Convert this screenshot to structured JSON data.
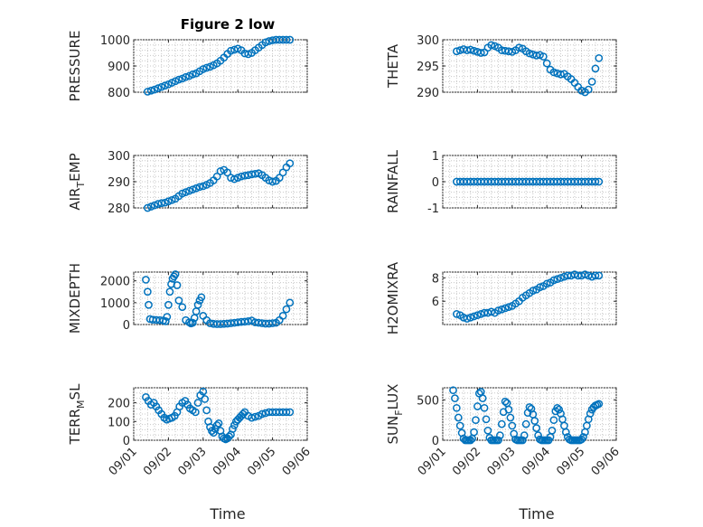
{
  "figure": {
    "title": "Figure 2 low",
    "xlabel": "Time",
    "x_tick_labels": [
      "09/01",
      "09/02",
      "09/03",
      "09/04",
      "09/05",
      "09/06"
    ],
    "marker_color": "#0072BD"
  },
  "chart_data": [
    {
      "type": "scatter",
      "name": "pressure",
      "ylabel_main": "PRESSURE",
      "ylabel_sub": "",
      "ylabel_tail": "",
      "ylim": [
        800,
        1000
      ],
      "yticks": [
        800,
        900,
        1000
      ],
      "x": [
        1.4,
        1.5,
        1.6,
        1.7,
        1.8,
        1.9,
        2.0,
        2.1,
        2.2,
        2.3,
        2.4,
        2.5,
        2.6,
        2.7,
        2.8,
        2.9,
        3.0,
        3.1,
        3.2,
        3.3,
        3.4,
        3.5,
        3.6,
        3.7,
        3.8,
        3.9,
        4.0,
        4.1,
        4.2,
        4.3,
        4.4,
        4.5,
        4.6,
        4.7,
        4.8,
        4.9,
        5.0,
        5.1,
        5.2,
        5.3,
        5.4,
        5.5
      ],
      "y": [
        802,
        806,
        810,
        815,
        820,
        825,
        830,
        836,
        842,
        848,
        852,
        858,
        862,
        868,
        872,
        880,
        888,
        893,
        897,
        903,
        910,
        920,
        932,
        946,
        958,
        962,
        966,
        960,
        948,
        945,
        950,
        960,
        970,
        980,
        990,
        995,
        998,
        1000,
        1000,
        1000,
        1000,
        1000
      ]
    },
    {
      "type": "scatter",
      "name": "theta",
      "ylabel_main": "THETA",
      "ylabel_sub": "",
      "ylabel_tail": "",
      "ylim": [
        290,
        300
      ],
      "yticks": [
        290,
        295,
        300
      ],
      "x": [
        1.4,
        1.5,
        1.6,
        1.7,
        1.8,
        1.9,
        2.0,
        2.1,
        2.2,
        2.3,
        2.4,
        2.5,
        2.6,
        2.7,
        2.8,
        2.9,
        3.0,
        3.1,
        3.2,
        3.3,
        3.4,
        3.5,
        3.6,
        3.7,
        3.8,
        3.9,
        4.0,
        4.1,
        4.2,
        4.3,
        4.4,
        4.5,
        4.6,
        4.7,
        4.8,
        4.9,
        5.0,
        5.1,
        5.2,
        5.3,
        5.4,
        5.5
      ],
      "y": [
        297.8,
        298.0,
        298.2,
        298.0,
        298.1,
        297.9,
        297.7,
        297.5,
        297.6,
        298.5,
        299.0,
        298.8,
        298.5,
        298.0,
        297.9,
        297.8,
        297.7,
        298.0,
        298.5,
        298.3,
        297.8,
        297.4,
        297.2,
        297.0,
        297.1,
        296.8,
        295.5,
        294.3,
        293.8,
        293.6,
        293.4,
        293.5,
        293.0,
        292.5,
        291.8,
        291.0,
        290.3,
        290.0,
        290.5,
        292.0,
        294.5,
        296.5
      ]
    },
    {
      "type": "scatter",
      "name": "air_temp",
      "ylabel_main": "AIR",
      "ylabel_sub": "T",
      "ylabel_tail": "EMP",
      "ylim": [
        280,
        300
      ],
      "yticks": [
        280,
        290,
        300
      ],
      "x": [
        1.4,
        1.5,
        1.6,
        1.7,
        1.8,
        1.9,
        2.0,
        2.1,
        2.2,
        2.3,
        2.4,
        2.5,
        2.6,
        2.7,
        2.8,
        2.9,
        3.0,
        3.1,
        3.2,
        3.3,
        3.4,
        3.5,
        3.6,
        3.7,
        3.8,
        3.9,
        4.0,
        4.1,
        4.2,
        4.3,
        4.4,
        4.5,
        4.6,
        4.7,
        4.8,
        4.9,
        5.0,
        5.1,
        5.2,
        5.3,
        5.4,
        5.5
      ],
      "y": [
        280.0,
        280.5,
        281.0,
        281.5,
        281.8,
        282.0,
        282.5,
        283.0,
        283.5,
        284.5,
        285.5,
        286.0,
        286.5,
        287.0,
        287.5,
        288.0,
        288.3,
        288.8,
        289.5,
        290.5,
        292.0,
        294.0,
        294.5,
        293.5,
        291.5,
        291.0,
        291.5,
        292.0,
        292.3,
        292.5,
        292.8,
        293.0,
        293.2,
        292.5,
        291.5,
        290.5,
        290.0,
        290.3,
        291.5,
        293.5,
        295.5,
        297.0
      ]
    },
    {
      "type": "scatter",
      "name": "rainfall",
      "ylabel_main": "RAINFALL",
      "ylabel_sub": "",
      "ylabel_tail": "",
      "ylim": [
        -1,
        1
      ],
      "yticks": [
        -1,
        0,
        1
      ],
      "x": [
        1.4,
        1.5,
        1.6,
        1.7,
        1.8,
        1.9,
        2.0,
        2.1,
        2.2,
        2.3,
        2.4,
        2.5,
        2.6,
        2.7,
        2.8,
        2.9,
        3.0,
        3.1,
        3.2,
        3.3,
        3.4,
        3.5,
        3.6,
        3.7,
        3.8,
        3.9,
        4.0,
        4.1,
        4.2,
        4.3,
        4.4,
        4.5,
        4.6,
        4.7,
        4.8,
        4.9,
        5.0,
        5.1,
        5.2,
        5.3,
        5.4,
        5.5
      ],
      "y": [
        0,
        0,
        0,
        0,
        0,
        0,
        0,
        0,
        0,
        0,
        0,
        0,
        0,
        0,
        0,
        0,
        0,
        0,
        0,
        0,
        0,
        0,
        0,
        0,
        0,
        0,
        0,
        0,
        0,
        0,
        0,
        0,
        0,
        0,
        0,
        0,
        0,
        0,
        0,
        0,
        0,
        0
      ]
    },
    {
      "type": "scatter",
      "name": "mixdepth",
      "ylabel_main": "MIXDEPTH",
      "ylabel_sub": "",
      "ylabel_tail": "",
      "ylim": [
        0,
        2400
      ],
      "yticks": [
        0,
        1000,
        2000
      ],
      "x": [
        1.35,
        1.4,
        1.43,
        1.47,
        1.55,
        1.65,
        1.75,
        1.85,
        1.92,
        1.96,
        2.0,
        2.04,
        2.08,
        2.12,
        2.16,
        2.2,
        2.25,
        2.3,
        2.4,
        2.5,
        2.6,
        2.65,
        2.7,
        2.75,
        2.8,
        2.85,
        2.9,
        2.95,
        3.0,
        3.1,
        3.2,
        3.3,
        3.4,
        3.5,
        3.6,
        3.7,
        3.8,
        3.9,
        4.0,
        4.1,
        4.2,
        4.3,
        4.4,
        4.5,
        4.6,
        4.7,
        4.8,
        4.9,
        5.0,
        5.1,
        5.2,
        5.3,
        5.4,
        5.5
      ],
      "y": [
        2050,
        1500,
        900,
        250,
        220,
        210,
        200,
        180,
        150,
        350,
        900,
        1500,
        1850,
        2100,
        2200,
        2300,
        1800,
        1100,
        800,
        200,
        100,
        50,
        80,
        300,
        600,
        900,
        1100,
        1250,
        400,
        200,
        60,
        30,
        20,
        20,
        30,
        40,
        60,
        80,
        100,
        120,
        130,
        150,
        180,
        100,
        80,
        60,
        40,
        40,
        60,
        80,
        200,
        400,
        700,
        1000
      ]
    },
    {
      "type": "scatter",
      "name": "h2omixra",
      "ylabel_main": "H2OMIXRA",
      "ylabel_sub": "",
      "ylabel_tail": "",
      "ylim": [
        4,
        8.5
      ],
      "yticks": [
        6,
        8
      ],
      "x": [
        1.4,
        1.5,
        1.6,
        1.7,
        1.8,
        1.9,
        2.0,
        2.1,
        2.2,
        2.3,
        2.4,
        2.5,
        2.6,
        2.7,
        2.8,
        2.9,
        3.0,
        3.1,
        3.2,
        3.3,
        3.4,
        3.5,
        3.6,
        3.7,
        3.8,
        3.9,
        4.0,
        4.1,
        4.2,
        4.3,
        4.4,
        4.5,
        4.6,
        4.7,
        4.8,
        4.9,
        5.0,
        5.1,
        5.2,
        5.3,
        5.4,
        5.5
      ],
      "y": [
        4.9,
        4.8,
        4.6,
        4.5,
        4.6,
        4.7,
        4.8,
        4.9,
        5.0,
        5.0,
        5.1,
        5.0,
        5.2,
        5.3,
        5.4,
        5.5,
        5.6,
        5.8,
        6.0,
        6.3,
        6.5,
        6.7,
        6.9,
        7.0,
        7.2,
        7.3,
        7.5,
        7.6,
        7.8,
        7.9,
        8.0,
        8.1,
        8.2,
        8.2,
        8.3,
        8.2,
        8.2,
        8.3,
        8.2,
        8.1,
        8.2,
        8.2
      ]
    },
    {
      "type": "scatter",
      "name": "terr_msl",
      "ylabel_main": "TERR",
      "ylabel_sub": "M",
      "ylabel_tail": "SL",
      "ylim": [
        0,
        280
      ],
      "yticks": [
        0,
        100,
        200
      ],
      "x": [
        1.35,
        1.42,
        1.5,
        1.58,
        1.65,
        1.72,
        1.8,
        1.88,
        1.95,
        2.02,
        2.1,
        2.18,
        2.25,
        2.32,
        2.4,
        2.48,
        2.55,
        2.62,
        2.7,
        2.78,
        2.85,
        2.92,
        3.0,
        3.05,
        3.1,
        3.15,
        3.2,
        3.25,
        3.3,
        3.35,
        3.4,
        3.45,
        3.5,
        3.55,
        3.6,
        3.65,
        3.7,
        3.75,
        3.8,
        3.85,
        3.9,
        3.95,
        4.0,
        4.05,
        4.1,
        4.15,
        4.2,
        4.3,
        4.4,
        4.5,
        4.6,
        4.7,
        4.8,
        4.9,
        5.0,
        5.1,
        5.2,
        5.3,
        5.4,
        5.5
      ],
      "y": [
        230,
        210,
        190,
        200,
        180,
        160,
        140,
        120,
        110,
        115,
        120,
        130,
        150,
        180,
        200,
        210,
        190,
        170,
        160,
        150,
        200,
        240,
        260,
        220,
        160,
        100,
        70,
        50,
        40,
        60,
        80,
        90,
        50,
        20,
        10,
        5,
        10,
        20,
        30,
        60,
        80,
        100,
        110,
        120,
        130,
        140,
        150,
        130,
        120,
        125,
        130,
        140,
        145,
        150,
        150,
        150,
        150,
        150,
        150,
        150
      ]
    },
    {
      "type": "scatter",
      "name": "sun_flux",
      "ylabel_main": "SUN",
      "ylabel_sub": "F",
      "ylabel_tail": "LUX",
      "ylim": [
        0,
        650
      ],
      "yticks": [
        0,
        500
      ],
      "x": [
        1.3,
        1.35,
        1.4,
        1.45,
        1.5,
        1.55,
        1.6,
        1.65,
        1.7,
        1.75,
        1.8,
        1.85,
        1.9,
        1.95,
        2.0,
        2.05,
        2.1,
        2.15,
        2.2,
        2.25,
        2.3,
        2.35,
        2.4,
        2.45,
        2.5,
        2.55,
        2.6,
        2.65,
        2.7,
        2.75,
        2.8,
        2.85,
        2.9,
        2.95,
        3.0,
        3.05,
        3.1,
        3.15,
        3.2,
        3.25,
        3.3,
        3.35,
        3.4,
        3.45,
        3.5,
        3.55,
        3.6,
        3.65,
        3.7,
        3.75,
        3.8,
        3.85,
        3.9,
        3.95,
        4.0,
        4.05,
        4.1,
        4.15,
        4.2,
        4.25,
        4.3,
        4.35,
        4.4,
        4.45,
        4.5,
        4.55,
        4.6,
        4.65,
        4.7,
        4.75,
        4.8,
        4.85,
        4.9,
        4.95,
        5.0,
        5.05,
        5.1,
        5.15,
        5.2,
        5.25,
        5.3,
        5.35,
        5.4,
        5.45,
        5.5
      ],
      "y": [
        620,
        520,
        400,
        280,
        180,
        90,
        20,
        0,
        0,
        0,
        0,
        20,
        100,
        250,
        420,
        580,
        600,
        520,
        400,
        260,
        120,
        30,
        0,
        0,
        0,
        0,
        0,
        60,
        200,
        350,
        480,
        460,
        380,
        280,
        180,
        80,
        10,
        0,
        0,
        0,
        0,
        60,
        200,
        340,
        410,
        390,
        320,
        240,
        150,
        60,
        10,
        0,
        0,
        0,
        0,
        0,
        40,
        120,
        250,
        360,
        400,
        380,
        330,
        260,
        180,
        100,
        40,
        10,
        0,
        0,
        0,
        0,
        0,
        0,
        10,
        40,
        100,
        180,
        260,
        330,
        380,
        410,
        430,
        440,
        450
      ]
    }
  ]
}
